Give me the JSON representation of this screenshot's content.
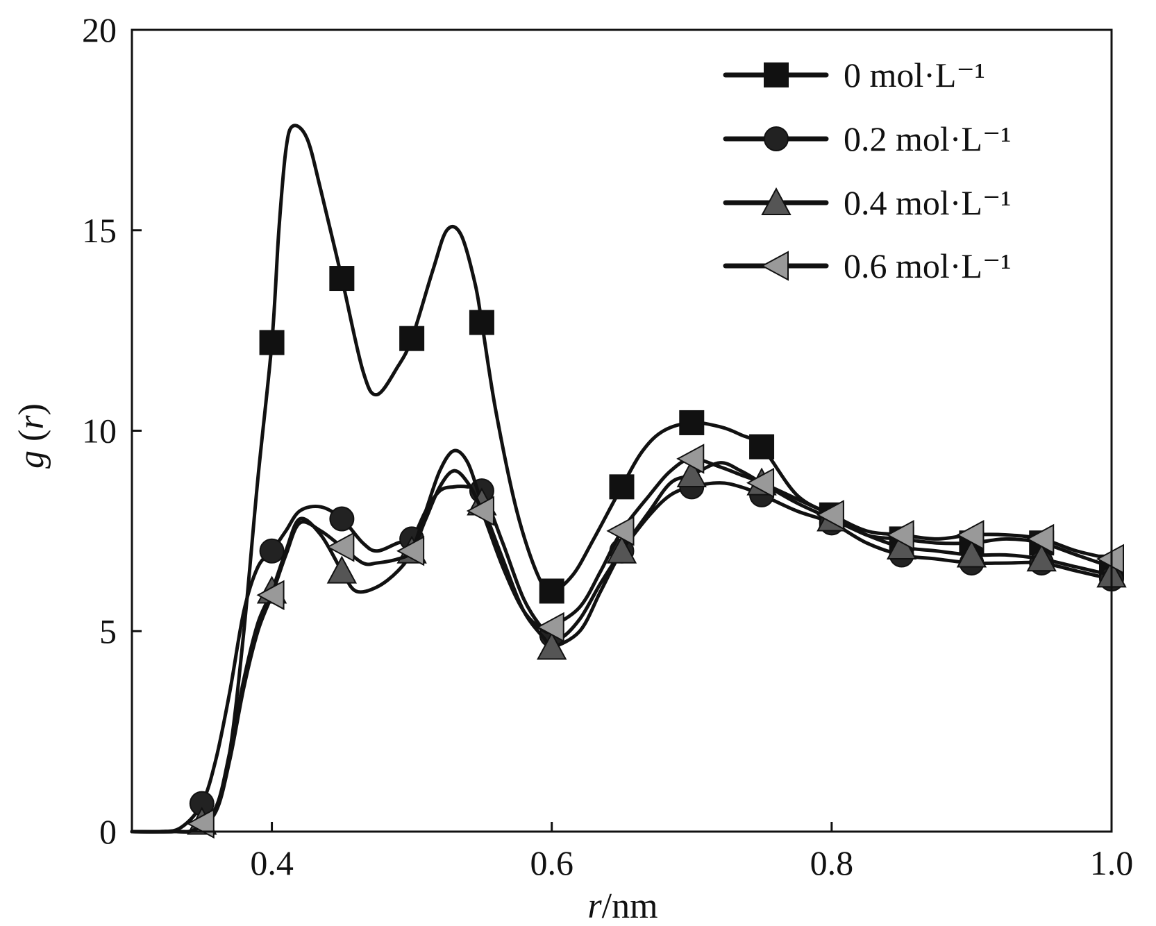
{
  "chart_data": {
    "type": "line",
    "title": "",
    "xlabel": "r/nm",
    "xlabel_var": "r",
    "xlabel_unit": "/nm",
    "ylabel": "g (r)",
    "ylabel_func": "g",
    "ylabel_var": "r",
    "xlim": [
      0.3,
      1.0
    ],
    "ylim": [
      0,
      20
    ],
    "xticks": [
      0.4,
      0.6,
      0.8,
      1.0
    ],
    "xtick_labels": [
      "0.4",
      "0.6",
      "0.8",
      "1.0"
    ],
    "yticks": [
      0,
      5,
      10,
      15,
      20
    ],
    "ytick_labels": [
      "0",
      "5",
      "10",
      "15",
      "20"
    ],
    "grid": false,
    "legend_position": "top-right",
    "series": [
      {
        "name": "0 mol·L⁻¹",
        "marker": "square",
        "marker_color": "#111111",
        "line_color": "#111111",
        "points": [
          [
            0.3,
            0
          ],
          [
            0.33,
            0
          ],
          [
            0.345,
            0.05
          ],
          [
            0.36,
            0.6
          ],
          [
            0.37,
            2.0
          ],
          [
            0.38,
            5.0
          ],
          [
            0.39,
            8.8
          ],
          [
            0.4,
            12.2
          ],
          [
            0.405,
            15.0
          ],
          [
            0.41,
            17.0
          ],
          [
            0.415,
            17.6
          ],
          [
            0.425,
            17.3
          ],
          [
            0.435,
            16.0
          ],
          [
            0.45,
            13.8
          ],
          [
            0.465,
            11.5
          ],
          [
            0.475,
            10.9
          ],
          [
            0.49,
            11.6
          ],
          [
            0.5,
            12.3
          ],
          [
            0.515,
            14.0
          ],
          [
            0.525,
            15.0
          ],
          [
            0.535,
            14.9
          ],
          [
            0.545,
            13.7
          ],
          [
            0.55,
            12.7
          ],
          [
            0.56,
            10.5
          ],
          [
            0.575,
            8.0
          ],
          [
            0.59,
            6.4
          ],
          [
            0.6,
            6.0
          ],
          [
            0.615,
            6.4
          ],
          [
            0.63,
            7.3
          ],
          [
            0.65,
            8.6
          ],
          [
            0.665,
            9.5
          ],
          [
            0.68,
            10.0
          ],
          [
            0.7,
            10.2
          ],
          [
            0.72,
            10.1
          ],
          [
            0.735,
            9.9
          ],
          [
            0.75,
            9.6
          ],
          [
            0.775,
            8.4
          ],
          [
            0.8,
            7.9
          ],
          [
            0.825,
            7.4
          ],
          [
            0.85,
            7.3
          ],
          [
            0.875,
            7.2
          ],
          [
            0.9,
            7.2
          ],
          [
            0.925,
            7.3
          ],
          [
            0.95,
            7.2
          ],
          [
            0.975,
            6.9
          ],
          [
            1.0,
            6.6
          ]
        ],
        "marker_x": [
          0.4,
          0.45,
          0.5,
          0.55,
          0.6,
          0.65,
          0.7,
          0.75,
          0.8,
          0.85,
          0.9,
          0.95,
          1.0
        ]
      },
      {
        "name": "0.2 mol·L⁻¹",
        "marker": "circle",
        "marker_color": "#222222",
        "line_color": "#111111",
        "points": [
          [
            0.3,
            0
          ],
          [
            0.32,
            0
          ],
          [
            0.335,
            0.1
          ],
          [
            0.35,
            0.7
          ],
          [
            0.36,
            1.8
          ],
          [
            0.37,
            3.5
          ],
          [
            0.38,
            5.5
          ],
          [
            0.39,
            6.6
          ],
          [
            0.4,
            7.0
          ],
          [
            0.41,
            7.5
          ],
          [
            0.42,
            8.0
          ],
          [
            0.435,
            8.1
          ],
          [
            0.45,
            7.8
          ],
          [
            0.465,
            7.2
          ],
          [
            0.475,
            7.0
          ],
          [
            0.49,
            7.2
          ],
          [
            0.5,
            7.3
          ],
          [
            0.51,
            8.0
          ],
          [
            0.52,
            8.5
          ],
          [
            0.53,
            8.6
          ],
          [
            0.54,
            8.6
          ],
          [
            0.55,
            8.5
          ],
          [
            0.565,
            7.2
          ],
          [
            0.58,
            5.8
          ],
          [
            0.595,
            5.0
          ],
          [
            0.605,
            4.8
          ],
          [
            0.62,
            5.3
          ],
          [
            0.635,
            6.2
          ],
          [
            0.65,
            7.0
          ],
          [
            0.67,
            7.9
          ],
          [
            0.685,
            8.4
          ],
          [
            0.7,
            8.6
          ],
          [
            0.72,
            8.7
          ],
          [
            0.735,
            8.6
          ],
          [
            0.75,
            8.4
          ],
          [
            0.775,
            8.0
          ],
          [
            0.8,
            7.7
          ],
          [
            0.825,
            7.2
          ],
          [
            0.85,
            6.9
          ],
          [
            0.875,
            6.8
          ],
          [
            0.9,
            6.7
          ],
          [
            0.925,
            6.7
          ],
          [
            0.95,
            6.7
          ],
          [
            0.975,
            6.5
          ],
          [
            1.0,
            6.3
          ]
        ],
        "marker_x": [
          0.35,
          0.4,
          0.45,
          0.5,
          0.55,
          0.6,
          0.65,
          0.7,
          0.75,
          0.8,
          0.85,
          0.9,
          0.95,
          1.0
        ]
      },
      {
        "name": "0.4 mol·L⁻¹",
        "marker": "triangle-up",
        "marker_color": "#555555",
        "line_color": "#111111",
        "points": [
          [
            0.3,
            0
          ],
          [
            0.33,
            0
          ],
          [
            0.345,
            0.05
          ],
          [
            0.36,
            0.6
          ],
          [
            0.37,
            2.0
          ],
          [
            0.38,
            3.8
          ],
          [
            0.39,
            5.2
          ],
          [
            0.4,
            6.0
          ],
          [
            0.41,
            7.0
          ],
          [
            0.42,
            7.8
          ],
          [
            0.435,
            7.4
          ],
          [
            0.45,
            6.5
          ],
          [
            0.46,
            6.0
          ],
          [
            0.475,
            6.1
          ],
          [
            0.49,
            6.5
          ],
          [
            0.5,
            7.0
          ],
          [
            0.51,
            8.0
          ],
          [
            0.52,
            9.0
          ],
          [
            0.53,
            9.5
          ],
          [
            0.54,
            9.2
          ],
          [
            0.55,
            8.2
          ],
          [
            0.565,
            6.8
          ],
          [
            0.58,
            5.5
          ],
          [
            0.595,
            4.8
          ],
          [
            0.6,
            4.6
          ],
          [
            0.62,
            5.0
          ],
          [
            0.635,
            6.0
          ],
          [
            0.65,
            7.0
          ],
          [
            0.67,
            8.0
          ],
          [
            0.685,
            8.7
          ],
          [
            0.7,
            8.9
          ],
          [
            0.72,
            9.2
          ],
          [
            0.735,
            9.0
          ],
          [
            0.75,
            8.7
          ],
          [
            0.775,
            8.2
          ],
          [
            0.8,
            7.8
          ],
          [
            0.825,
            7.4
          ],
          [
            0.85,
            7.1
          ],
          [
            0.875,
            7.0
          ],
          [
            0.9,
            6.9
          ],
          [
            0.925,
            6.9
          ],
          [
            0.95,
            6.8
          ],
          [
            0.975,
            6.6
          ],
          [
            1.0,
            6.4
          ]
        ],
        "marker_x": [
          0.35,
          0.4,
          0.45,
          0.5,
          0.55,
          0.6,
          0.65,
          0.7,
          0.75,
          0.8,
          0.85,
          0.9,
          0.95,
          1.0
        ]
      },
      {
        "name": "0.6 mol·L⁻¹",
        "marker": "triangle-left",
        "marker_color": "#999999",
        "line_color": "#111111",
        "points": [
          [
            0.3,
            0
          ],
          [
            0.33,
            0
          ],
          [
            0.345,
            0.05
          ],
          [
            0.36,
            0.5
          ],
          [
            0.37,
            1.8
          ],
          [
            0.38,
            3.6
          ],
          [
            0.39,
            5.0
          ],
          [
            0.4,
            5.9
          ],
          [
            0.41,
            6.9
          ],
          [
            0.42,
            7.7
          ],
          [
            0.435,
            7.5
          ],
          [
            0.45,
            7.1
          ],
          [
            0.465,
            6.7
          ],
          [
            0.475,
            6.7
          ],
          [
            0.49,
            6.8
          ],
          [
            0.5,
            7.0
          ],
          [
            0.51,
            7.8
          ],
          [
            0.52,
            8.6
          ],
          [
            0.53,
            9.0
          ],
          [
            0.54,
            8.7
          ],
          [
            0.55,
            8.0
          ],
          [
            0.565,
            6.6
          ],
          [
            0.58,
            5.5
          ],
          [
            0.595,
            5.0
          ],
          [
            0.6,
            5.1
          ],
          [
            0.62,
            5.6
          ],
          [
            0.635,
            6.5
          ],
          [
            0.65,
            7.5
          ],
          [
            0.67,
            8.4
          ],
          [
            0.685,
            9.0
          ],
          [
            0.7,
            9.3
          ],
          [
            0.72,
            9.1
          ],
          [
            0.735,
            8.9
          ],
          [
            0.75,
            8.7
          ],
          [
            0.775,
            8.3
          ],
          [
            0.8,
            7.9
          ],
          [
            0.825,
            7.5
          ],
          [
            0.85,
            7.4
          ],
          [
            0.875,
            7.3
          ],
          [
            0.9,
            7.4
          ],
          [
            0.925,
            7.4
          ],
          [
            0.95,
            7.3
          ],
          [
            0.975,
            7.0
          ],
          [
            1.0,
            6.8
          ]
        ],
        "marker_x": [
          0.35,
          0.4,
          0.45,
          0.5,
          0.55,
          0.6,
          0.65,
          0.7,
          0.75,
          0.8,
          0.85,
          0.9,
          0.95,
          1.0
        ]
      }
    ]
  }
}
